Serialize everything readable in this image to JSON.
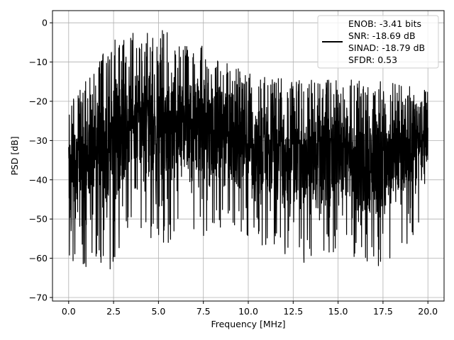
{
  "chart_data": {
    "type": "line",
    "xlabel": "Frequency [MHz]",
    "ylabel": "PSD [dB]",
    "xlim": [
      -0.9,
      20.9
    ],
    "ylim": [
      -70.9,
      3.1
    ],
    "xticks": [
      0.0,
      2.5,
      5.0,
      7.5,
      10.0,
      12.5,
      15.0,
      17.5,
      20.0
    ],
    "xtick_labels": [
      "0.0",
      "2.5",
      "5.0",
      "7.5",
      "10.0",
      "12.5",
      "15.0",
      "17.5",
      "20.0"
    ],
    "yticks": [
      0,
      -10,
      -20,
      -30,
      -40,
      -50,
      -60,
      -70
    ],
    "ytick_labels": [
      "0",
      "−10",
      "−20",
      "−30",
      "−40",
      "−50",
      "−60",
      "−70"
    ],
    "grid": true,
    "legend_position": "top-right",
    "legend_lines": [
      "ENOB: -3.41 bits",
      "SNR: -18.69 dB",
      "SINAD: -18.79 dB",
      "SFDR: 0.53"
    ],
    "series": [
      {
        "color": "#000000",
        "x": [
          0.0,
          2.5,
          3.0,
          3.5,
          4.0,
          5.0,
          6.0,
          7.5,
          8.5,
          10.0,
          12.5,
          15.0,
          17.5,
          20.0
        ],
        "upper": [
          -19.5,
          -4.0,
          -2.0,
          -2.5,
          -3.0,
          -1.0,
          -4.0,
          -6.0,
          -9.0,
          -13.0,
          -14.5,
          -13.5,
          -15.0,
          -17.0
        ],
        "lower": [
          -62.0,
          -63.0,
          -55.0,
          -52.0,
          -52.0,
          -58.0,
          -55.0,
          -55.0,
          -53.0,
          -55.0,
          -62.0,
          -58.0,
          -64.0,
          -50.0
        ]
      }
    ]
  }
}
